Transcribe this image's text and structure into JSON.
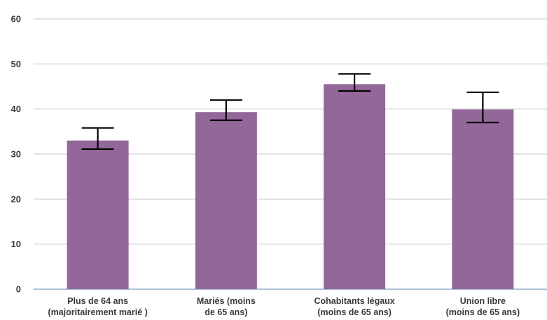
{
  "chart_data": {
    "type": "bar",
    "categories": [
      [
        "Plus de 64 ans",
        "(majoritairement marié )"
      ],
      [
        "Mariés (moins",
        "de 65 ans)"
      ],
      [
        "Cohabitants légaux",
        "(moins de 65 ans)"
      ],
      [
        "Union libre",
        "(moins de 65 ans)"
      ]
    ],
    "values": [
      33,
      39.3,
      45.5,
      39.9
    ],
    "error_low": [
      31.1,
      37.5,
      44.0,
      37.0
    ],
    "error_high": [
      35.8,
      42.0,
      47.8,
      43.7
    ],
    "ylim": [
      0,
      60
    ],
    "yticks": [
      0,
      10,
      20,
      30,
      40,
      50,
      60
    ],
    "grid": true,
    "bar_color": "#936799",
    "error_color": "#000000",
    "grid_color": "#d9d9d9",
    "baseline_color": "#a9c3d8",
    "title": "",
    "xlabel": "",
    "ylabel": ""
  }
}
